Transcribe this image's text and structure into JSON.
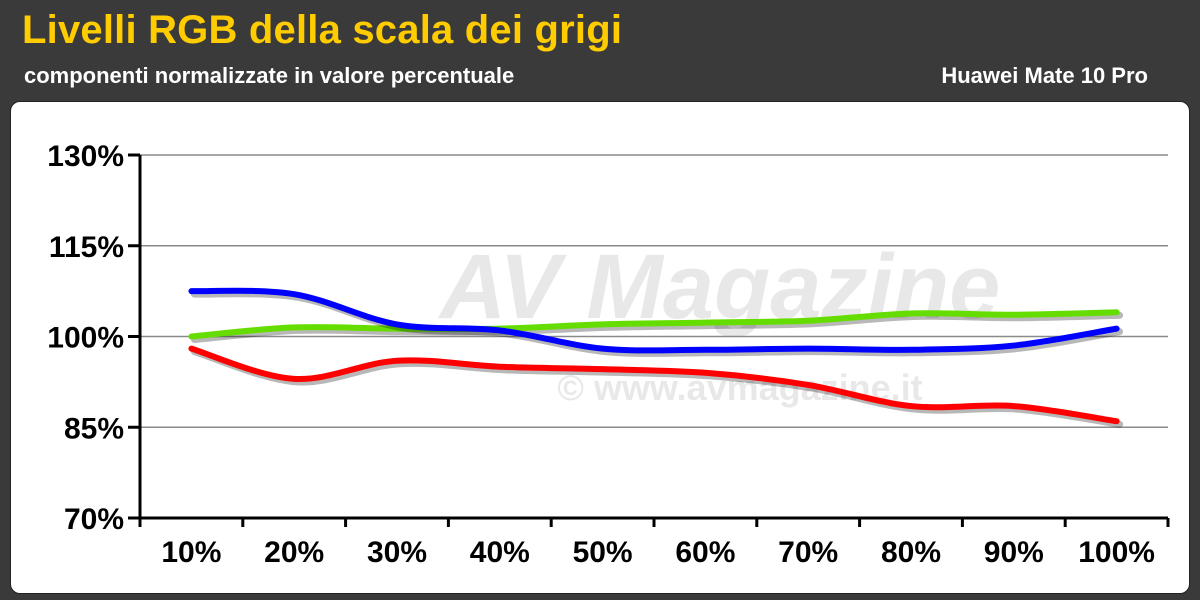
{
  "header": {
    "title": "Livelli RGB della scala dei grigi",
    "subtitle": "componenti normalizzate in valore percentuale",
    "device": "Huawei Mate 10 Pro"
  },
  "watermark": {
    "logo_text": "AV Magazine",
    "url_text": "© www.avmagazine.it"
  },
  "chart_data": {
    "type": "line",
    "categories": [
      "10%",
      "20%",
      "30%",
      "40%",
      "50%",
      "60%",
      "70%",
      "80%",
      "90%",
      "100%"
    ],
    "ylim": [
      70,
      130
    ],
    "yticks": [
      70,
      85,
      100,
      115,
      130
    ],
    "ytick_labels": [
      "70%",
      "85%",
      "100%",
      "115%",
      "130%"
    ],
    "grid": true,
    "series": [
      {
        "key": "red",
        "color": "#ff0000",
        "values": [
          98,
          93,
          96,
          95,
          94.6,
          94,
          92,
          88.5,
          88.5,
          86
        ]
      },
      {
        "key": "green",
        "color": "#66dd00",
        "values": [
          100,
          101.5,
          101.3,
          101.3,
          102,
          102.3,
          102.6,
          103.8,
          103.6,
          104
        ]
      },
      {
        "key": "blue",
        "color": "#0000ff",
        "values": [
          107.5,
          107,
          102,
          101,
          98,
          97.8,
          98,
          97.8,
          98.5,
          101.3
        ]
      }
    ]
  }
}
